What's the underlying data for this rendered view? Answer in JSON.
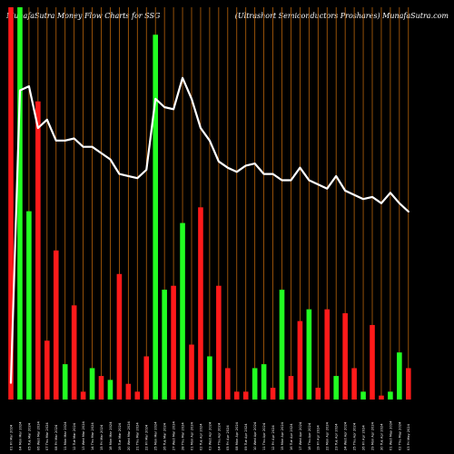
{
  "header": {
    "left_title": "MunafaSutra  Money Flow  Charts for SSG",
    "right_title": "(Ultrashort Semiconductors Proshares) MunafaSutra.com"
  },
  "colors": {
    "background": "#000000",
    "up": "#22ff22",
    "down": "#ff1a1a",
    "line": "#ffffff",
    "gridline": "#b8630a"
  },
  "chart_data": {
    "type": "bar",
    "title": "MunafaSutra  Money Flow  Charts for SSG",
    "subtitle": "(Ultrashort Semiconductors Proshares) MunafaSutra.com",
    "grid": "vertical",
    "categories": [
      "01 Fri Mar 2024",
      "04 Mon Mar 2024",
      "05 Tue Mar 2024",
      "06 Wed Mar 2024",
      "07 Thu Mar 2024",
      "08 Fri Mar 2024",
      "11 Mon Mar 2024",
      "12 Tue Mar 2024",
      "13 Wed Mar 2024",
      "14 Thu Mar 2024",
      "15 Fri Mar 2024",
      "18 Mon Mar 2024",
      "19 Tue Mar 2024",
      "20 Wed Mar 2024",
      "21 Thu Mar 2024",
      "22 Fri Mar 2024",
      "25 Mon Mar 2024",
      "26 Tue Mar 2024",
      "27 Wed Mar 2024",
      "28 Thu Mar 2024",
      "01 Mon Apr 2024",
      "02 Tue Apr 2024",
      "03 Wed Apr 2024",
      "04 Thu Apr 2024",
      "05 Fri Apr 2024",
      "08 Mon Apr 2024",
      "09 Tue Apr 2024",
      "10 Wed Apr 2024",
      "11 Thu Apr 2024",
      "12 Fri Apr 2024",
      "15 Mon Apr 2024",
      "16 Tue Apr 2024",
      "17 Wed Apr 2024",
      "18 Thu Apr 2024",
      "19 Fri Apr 2024",
      "22 Mon Apr 2024",
      "23 Tue Apr 2024",
      "24 Wed Apr 2024",
      "25 Thu Apr 2024",
      "26 Fri Apr 2024",
      "29 Mon Apr 2024",
      "30 Tue Apr 2024",
      "01 Wed May 2024",
      "02 Thu May 2024",
      "03 Fri May 2024"
    ],
    "series": [
      {
        "values": [
          100,
          100,
          48,
          76,
          15,
          38,
          9,
          24,
          2,
          8,
          6,
          5,
          32,
          4,
          2,
          11,
          93,
          28,
          29,
          45,
          14,
          49,
          11,
          29,
          8,
          2,
          2,
          8,
          9,
          3,
          28,
          6,
          20,
          23,
          3,
          23,
          6,
          22,
          8,
          2,
          19,
          1,
          2,
          12,
          8
        ]
      }
    ],
    "bar_colors": [
      "red",
      "green",
      "green",
      "red",
      "red",
      "red",
      "green",
      "red",
      "red",
      "green",
      "red",
      "green",
      "red",
      "red",
      "red",
      "red",
      "green",
      "green",
      "red",
      "green",
      "red",
      "red",
      "green",
      "red",
      "red",
      "red",
      "red",
      "green",
      "green",
      "red",
      "green",
      "red",
      "red",
      "green",
      "red",
      "red",
      "green",
      "red",
      "red",
      "green",
      "red",
      "red",
      "green",
      "green",
      "red"
    ],
    "price_line": {
      "values": [
        4,
        74,
        75,
        65,
        67,
        62,
        62,
        62.5,
        60.5,
        60.5,
        59,
        57.5,
        54,
        53.5,
        53,
        55,
        72,
        70,
        69.5,
        77,
        72,
        65,
        62,
        57,
        55.5,
        54.5,
        56,
        56.5,
        54,
        54,
        52.5,
        52.5,
        55.5,
        52.5,
        51.5,
        50.5,
        53.5,
        50,
        49,
        48,
        48.5,
        47,
        49.5,
        47,
        45
      ]
    },
    "ylim": [
      0,
      100
    ]
  }
}
